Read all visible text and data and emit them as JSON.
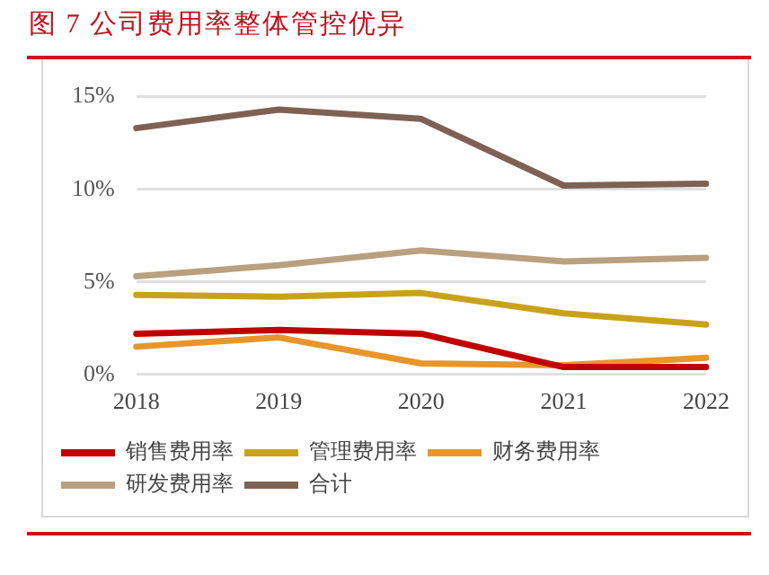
{
  "chart_data": {
    "type": "line",
    "title": "图 7 公司费用率整体管控优异",
    "categories": [
      "2018",
      "2019",
      "2020",
      "2021",
      "2022"
    ],
    "series": [
      {
        "name": "销售费用率",
        "color": "#c00000",
        "values": [
          2.2,
          2.4,
          2.2,
          0.4,
          0.4
        ]
      },
      {
        "name": "管理费用率",
        "color": "#c9a21b",
        "values": [
          4.3,
          4.2,
          4.4,
          3.3,
          2.7
        ]
      },
      {
        "name": "财务费用率",
        "color": "#e8952a",
        "values": [
          1.5,
          2.0,
          0.6,
          0.5,
          0.9
        ]
      },
      {
        "name": "研发费用率",
        "color": "#b8a080",
        "values": [
          5.3,
          5.9,
          6.7,
          6.1,
          6.3
        ]
      },
      {
        "name": "合计",
        "color": "#7f6154",
        "values": [
          13.3,
          14.3,
          13.8,
          10.2,
          10.3
        ]
      }
    ],
    "ylim": [
      0,
      15
    ],
    "yticks": [
      {
        "value": 0,
        "label": "0%"
      },
      {
        "value": 5,
        "label": "5%"
      },
      {
        "value": 10,
        "label": "10%"
      },
      {
        "value": 15,
        "label": "15%"
      }
    ],
    "grid": "y",
    "legend": "bottom",
    "marker": "none",
    "line_style": "solid"
  }
}
